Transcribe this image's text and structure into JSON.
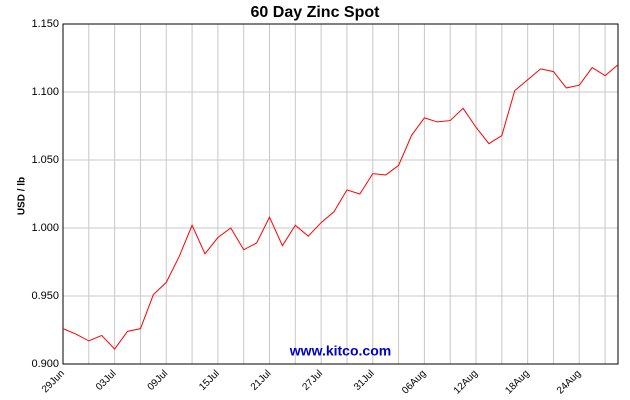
{
  "chart_data": {
    "type": "line",
    "title": "60 Day Zinc Spot",
    "y_label": "USD / lb",
    "watermark": "www.kitco.com",
    "categories": [
      "29Jun",
      null,
      null,
      null,
      "03Jul",
      null,
      null,
      null,
      "09Jul",
      null,
      null,
      null,
      "15Jul",
      null,
      null,
      null,
      "21Jul",
      null,
      null,
      null,
      "27Jul",
      null,
      null,
      null,
      "31Jul",
      null,
      null,
      null,
      "06Aug",
      null,
      null,
      null,
      "12Aug",
      null,
      null,
      null,
      "18Aug",
      null,
      null,
      null,
      "24Aug",
      null,
      null,
      null
    ],
    "series": [
      {
        "name": "Zinc",
        "color": "#ff0000",
        "values": [
          0.926,
          0.922,
          0.917,
          0.921,
          0.911,
          0.924,
          0.926,
          0.951,
          0.96,
          0.979,
          1.002,
          0.981,
          0.993,
          1.0,
          0.984,
          0.989,
          1.008,
          0.987,
          1.002,
          0.994,
          1.004,
          1.012,
          1.028,
          1.025,
          1.04,
          1.039,
          1.046,
          1.068,
          1.081,
          1.078,
          1.079,
          1.088,
          1.074,
          1.062,
          1.068,
          1.101,
          1.109,
          1.117,
          1.115,
          1.103,
          1.105,
          1.118,
          1.112,
          1.12
        ]
      }
    ],
    "ylim": [
      0.9,
      1.15
    ],
    "yticks": [
      {
        "value": 0.9,
        "label": "0.900"
      },
      {
        "value": 0.95,
        "label": "0.950"
      },
      {
        "value": 1.0,
        "label": "1.000"
      },
      {
        "value": 1.05,
        "label": "1.050"
      },
      {
        "value": 1.1,
        "label": "1.100"
      },
      {
        "value": 1.15,
        "label": "1.150"
      }
    ],
    "grid": true
  }
}
